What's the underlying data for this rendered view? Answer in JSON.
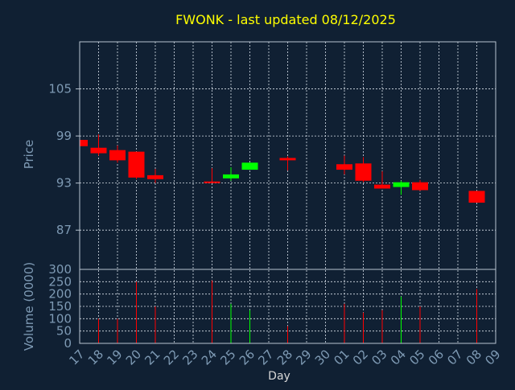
{
  "chart_data": {
    "type": "candlestick",
    "title": "FWONK - last updated 08/12/2025",
    "xlabel": "Day",
    "ylabel_price": "Price",
    "ylabel_volume": "Volume (0000)",
    "x_ticks": [
      "17",
      "18",
      "19",
      "20",
      "21",
      "22",
      "23",
      "24",
      "25",
      "26",
      "27",
      "28",
      "29",
      "30",
      "01",
      "02",
      "03",
      "04",
      "05",
      "06",
      "07",
      "08",
      "09"
    ],
    "price_ylim": [
      82,
      111
    ],
    "price_ticks": [
      87,
      93,
      99,
      105
    ],
    "volume_ylim": [
      0,
      300
    ],
    "volume_ticks": [
      0,
      50,
      100,
      150,
      200,
      250,
      300
    ],
    "grid": true,
    "colors": {
      "up": "#00ff00",
      "down": "#ff0000",
      "title": "#ffff00",
      "axis_label": "#7e9ab4",
      "background": "#102033"
    },
    "candles": [
      {
        "day": "17",
        "open": 98.5,
        "close": 97.7,
        "high": 98.5,
        "low": 97.7,
        "volume": 0
      },
      {
        "day": "18",
        "open": 97.5,
        "close": 96.8,
        "high": 99.2,
        "low": 96.5,
        "volume": 100
      },
      {
        "day": "19",
        "open": 97.2,
        "close": 95.9,
        "high": 97.8,
        "low": 95.6,
        "volume": 100
      },
      {
        "day": "20",
        "open": 97.0,
        "close": 93.7,
        "high": 97.0,
        "low": 93.5,
        "volume": 250
      },
      {
        "day": "21",
        "open": 94.0,
        "close": 93.5,
        "high": 94.8,
        "low": 93.0,
        "volume": 150
      },
      {
        "day": "24",
        "open": 93.2,
        "close": 93.0,
        "high": 94.9,
        "low": 93.0,
        "volume": 255
      },
      {
        "day": "25",
        "open": 93.6,
        "close": 94.1,
        "high": 95.0,
        "low": 93.3,
        "volume": 160
      },
      {
        "day": "26",
        "open": 94.7,
        "close": 95.6,
        "high": 95.6,
        "low": 94.7,
        "volume": 135
      },
      {
        "day": "28",
        "open": 96.2,
        "close": 95.9,
        "high": 96.4,
        "low": 94.6,
        "volume": 70
      },
      {
        "day": "01",
        "open": 95.4,
        "close": 94.7,
        "high": 96.5,
        "low": 94.1,
        "volume": 160
      },
      {
        "day": "02",
        "open": 95.5,
        "close": 93.3,
        "high": 96.3,
        "low": 93.1,
        "volume": 125
      },
      {
        "day": "03",
        "open": 92.8,
        "close": 92.3,
        "high": 94.5,
        "low": 92.3,
        "volume": 135
      },
      {
        "day": "04",
        "open": 92.5,
        "close": 93.1,
        "high": 93.3,
        "low": 91.5,
        "volume": 190
      },
      {
        "day": "05",
        "open": 93.1,
        "close": 92.1,
        "high": 93.4,
        "low": 92.0,
        "volume": 150
      },
      {
        "day": "08",
        "open": 92.0,
        "close": 90.5,
        "high": 92.0,
        "low": 90.5,
        "volume": 220
      }
    ]
  }
}
